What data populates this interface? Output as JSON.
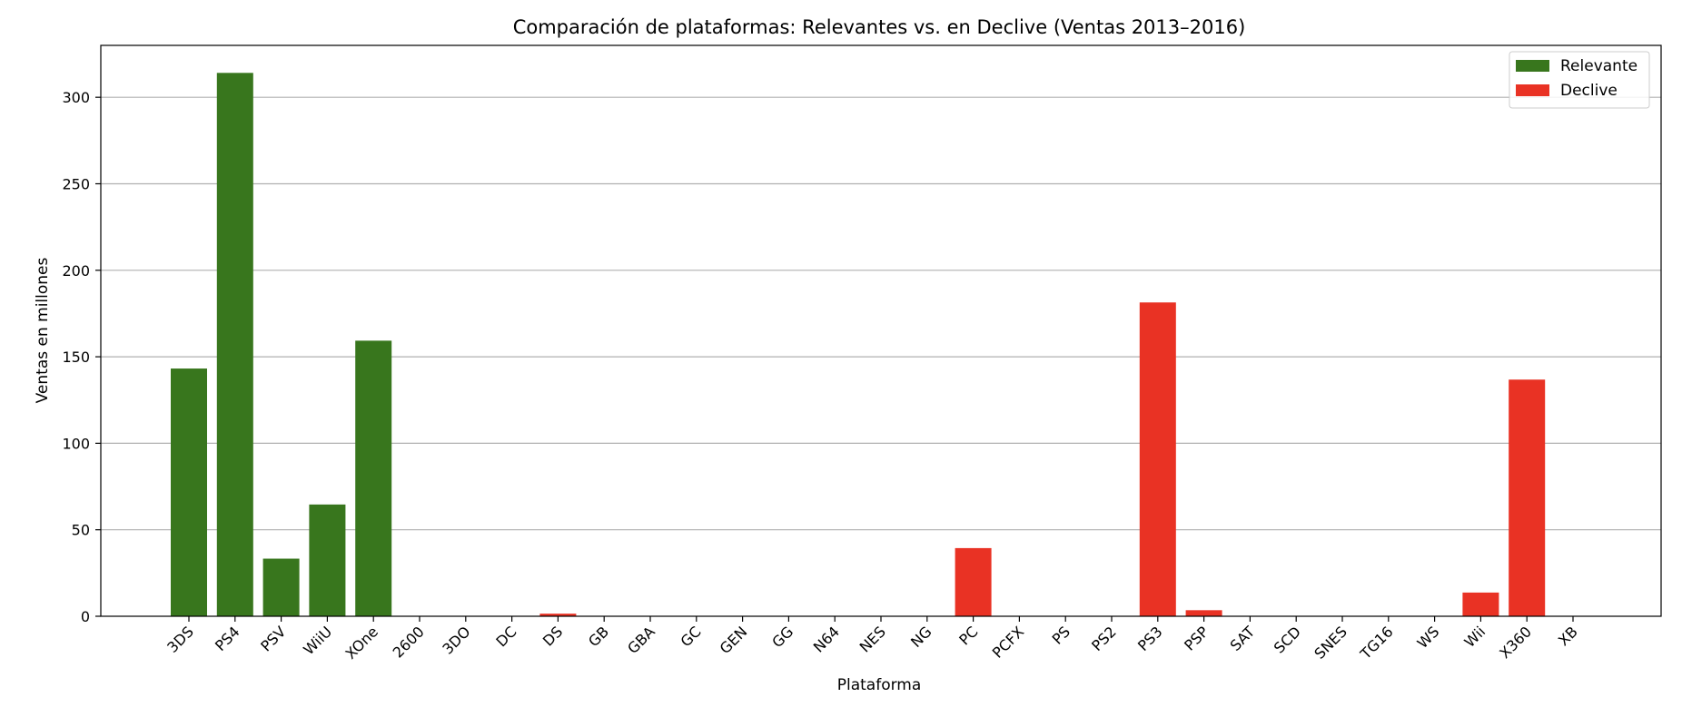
{
  "chart_data": {
    "type": "bar",
    "title": "Comparación de plataformas: Relevantes vs. en Declive (Ventas 2013–2016)",
    "xlabel": "Plataforma",
    "ylabel": "Ventas en millones",
    "ylim": [
      0,
      330
    ],
    "yticks": [
      0,
      50,
      100,
      150,
      200,
      250,
      300
    ],
    "grid": "horizontal",
    "legend_position": "top-right",
    "categories": [
      "3DS",
      "PS4",
      "PSV",
      "WiiU",
      "XOne",
      "2600",
      "3DO",
      "DC",
      "DS",
      "GB",
      "GBA",
      "GC",
      "GEN",
      "GG",
      "N64",
      "NES",
      "NG",
      "PC",
      "PCFX",
      "PS",
      "PS2",
      "PS3",
      "PSP",
      "SAT",
      "SCD",
      "SNES",
      "TG16",
      "WS",
      "Wii",
      "X360",
      "XB"
    ],
    "series": [
      {
        "name": "Relevante",
        "color": "#38761d",
        "values": [
          143.2,
          314.1,
          33.3,
          64.6,
          159.3,
          null,
          null,
          null,
          null,
          null,
          null,
          null,
          null,
          null,
          null,
          null,
          null,
          null,
          null,
          null,
          null,
          null,
          null,
          null,
          null,
          null,
          null,
          null,
          null,
          null,
          null
        ]
      },
      {
        "name": "Declive",
        "color": "#e93224",
        "values": [
          null,
          null,
          null,
          null,
          null,
          0,
          0,
          0,
          1.5,
          0,
          0,
          0,
          0,
          0,
          0,
          0,
          0,
          39.4,
          0,
          0,
          0,
          181.4,
          3.5,
          0,
          0,
          0,
          0,
          0,
          13.7,
          136.8,
          0
        ]
      }
    ]
  }
}
